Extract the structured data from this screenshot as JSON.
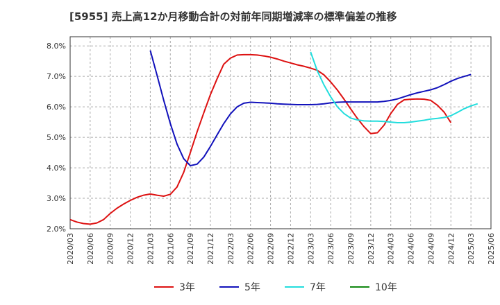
{
  "chart_data": {
    "type": "line",
    "title": "[5955]  売上高12か月移動合計の対前年同期増減率の標準偏差の推移",
    "xlabel": "",
    "ylabel": "",
    "ylim": [
      2.0,
      8.3
    ],
    "y_ticks": [
      "2.0%",
      "3.0%",
      "4.0%",
      "5.0%",
      "6.0%",
      "7.0%",
      "8.0%"
    ],
    "y_tick_values": [
      2.0,
      3.0,
      4.0,
      5.0,
      6.0,
      7.0,
      8.0
    ],
    "x_ticks": [
      "2020/03",
      "2020/06",
      "2020/09",
      "2020/12",
      "2021/03",
      "2021/06",
      "2021/09",
      "2021/12",
      "2022/03",
      "2022/06",
      "2022/09",
      "2022/12",
      "2023/03",
      "2023/06",
      "2023/09",
      "2023/12",
      "2024/03",
      "2024/06",
      "2024/09",
      "2024/12",
      "2025/03",
      "2025/06"
    ],
    "grid": true,
    "legend_position": "bottom",
    "series": [
      {
        "name": "3年",
        "color": "#dd1111",
        "start_index": 0,
        "values": [
          2.3,
          2.22,
          2.17,
          2.15,
          2.19,
          2.3,
          2.5,
          2.67,
          2.81,
          2.93,
          3.03,
          3.1,
          3.14,
          3.1,
          3.07,
          3.13,
          3.37,
          3.85,
          4.5,
          5.18,
          5.8,
          6.4,
          6.92,
          7.4,
          7.6,
          7.7,
          7.71,
          7.71,
          7.7,
          7.67,
          7.63,
          7.57,
          7.5,
          7.44,
          7.38,
          7.33,
          7.27,
          7.2,
          7.05,
          6.82,
          6.55,
          6.25,
          5.93,
          5.62,
          5.35,
          5.12,
          5.15,
          5.4,
          5.78,
          6.08,
          6.23,
          6.25,
          6.26,
          6.25,
          6.21,
          6.05,
          5.82,
          5.48
        ]
      },
      {
        "name": "5年",
        "color": "#1111bb",
        "start_index": 12,
        "values": [
          7.85,
          7.05,
          6.22,
          5.45,
          4.78,
          4.3,
          4.07,
          4.12,
          4.35,
          4.7,
          5.08,
          5.45,
          5.77,
          6.0,
          6.12,
          6.15,
          6.14,
          6.13,
          6.12,
          6.1,
          6.09,
          6.08,
          6.07,
          6.07,
          6.07,
          6.08,
          6.1,
          6.13,
          6.15,
          6.16,
          6.16,
          6.16,
          6.16,
          6.16,
          6.16,
          6.18,
          6.21,
          6.26,
          6.33,
          6.4,
          6.46,
          6.51,
          6.56,
          6.63,
          6.73,
          6.84,
          6.93,
          7.0,
          7.06
        ]
      },
      {
        "name": "7年",
        "color": "#22dddd",
        "start_index": 36,
        "values": [
          7.8,
          7.18,
          6.72,
          6.33,
          6.0,
          5.78,
          5.63,
          5.57,
          5.54,
          5.53,
          5.53,
          5.52,
          5.5,
          5.48,
          5.48,
          5.5,
          5.53,
          5.56,
          5.6,
          5.62,
          5.65,
          5.71,
          5.82,
          5.94,
          6.03,
          6.1
        ]
      },
      {
        "name": "10年",
        "color": "#118811",
        "start_index": 0,
        "values": []
      }
    ]
  }
}
